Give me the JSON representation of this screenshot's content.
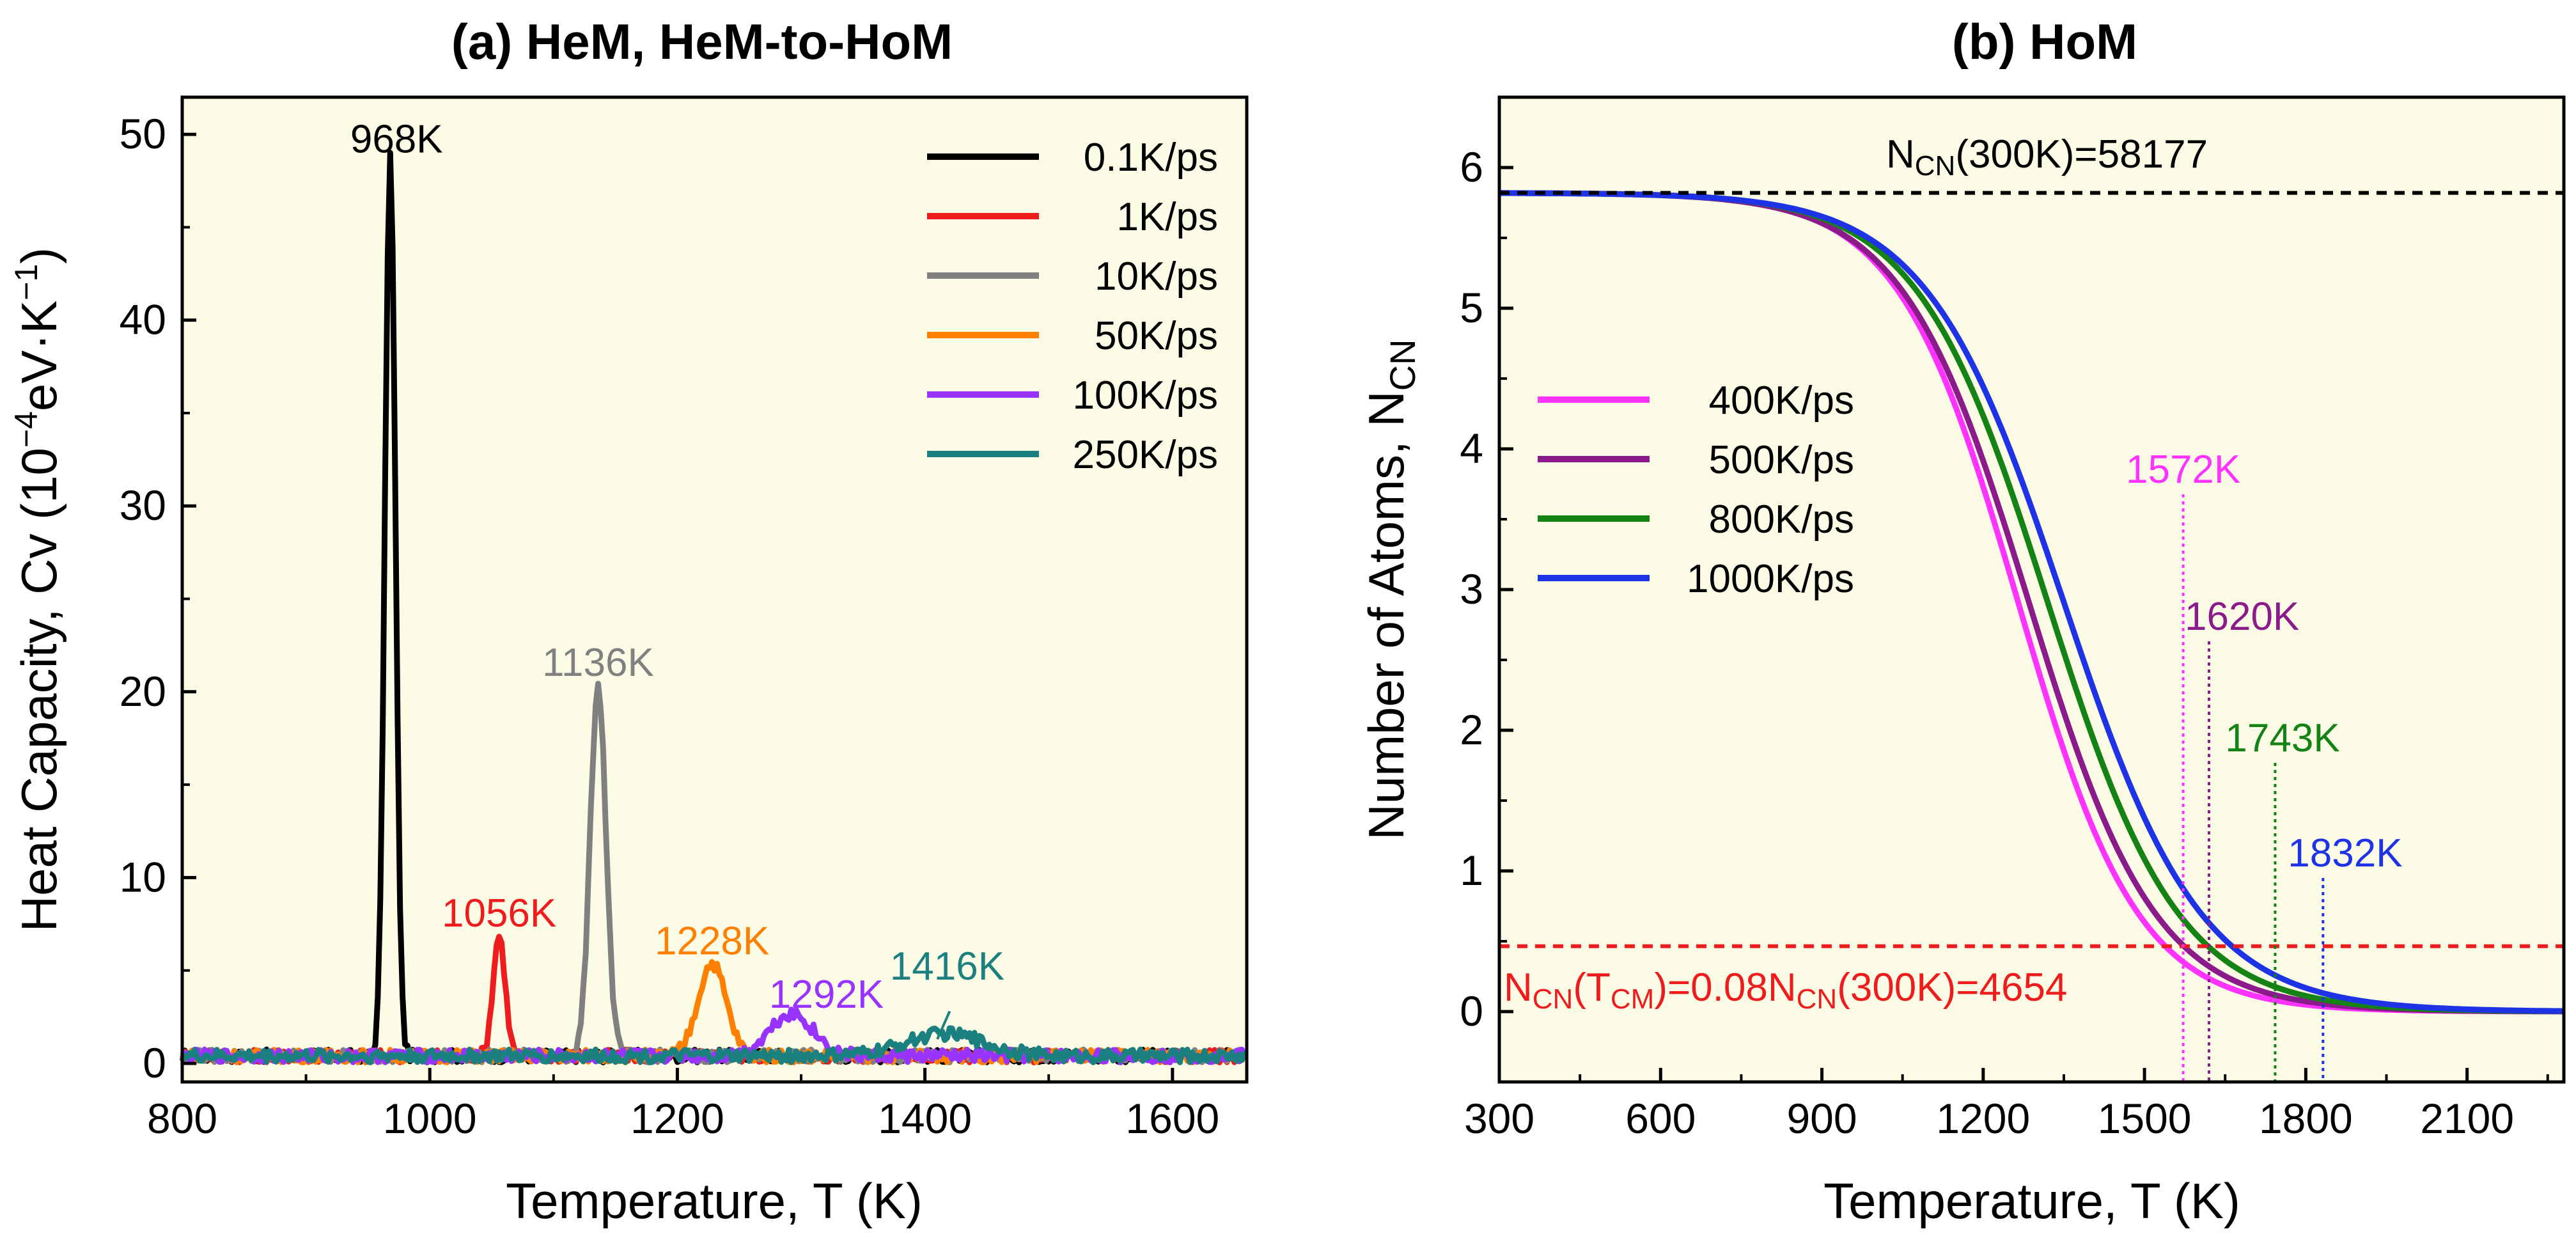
{
  "chart_data": [
    {
      "type": "line",
      "title": "(a) HeM, HeM-to-HoM",
      "xlabel": "Temperature, T (K)",
      "ylabel_main": "Heat Capacity, Cv (10",
      "ylabel_exp": "−4",
      "ylabel_unit": "eV·K",
      "ylabel_unit_exp": "−1",
      "ylabel_close": ")",
      "xlim": [
        800,
        1660
      ],
      "ylim": [
        -1,
        52
      ],
      "xticks": [
        800,
        1000,
        1200,
        1400,
        1600
      ],
      "yticks": [
        0,
        10,
        20,
        30,
        40,
        50
      ],
      "background": "#fcfce6",
      "series": [
        {
          "name": "0.1K/ps",
          "color": "#000000",
          "peak_label": "968K",
          "peak_T": 968,
          "peak_value": 48.5,
          "width": 6,
          "baseline": 0.4
        },
        {
          "name": "1K/ps",
          "color": "#ee1c1c",
          "peak_label": "1056K",
          "peak_T": 1056,
          "peak_value": 6.5,
          "width": 7,
          "baseline": 0.4
        },
        {
          "name": "10K/ps",
          "color": "#808080",
          "peak_label": "1136K",
          "peak_T": 1136,
          "peak_value": 20,
          "width": 9,
          "baseline": 0.4
        },
        {
          "name": "50K/ps",
          "color": "#ff8000",
          "peak_label": "1228K",
          "peak_T": 1228,
          "peak_value": 5,
          "width": 16,
          "baseline": 0.4
        },
        {
          "name": "100K/ps",
          "color": "#9933ff",
          "peak_label": "1292K",
          "peak_T": 1292,
          "peak_value": 2.3,
          "width": 25,
          "baseline": 0.4
        },
        {
          "name": "250K/ps",
          "color": "#1b8080",
          "peak_label": "1416K",
          "peak_T": 1416,
          "peak_value": 1.2,
          "width": 45,
          "baseline": 0.4
        }
      ]
    },
    {
      "type": "line",
      "title": "(b) HoM",
      "xlabel": "Temperature, T (K)",
      "ylabel_main": "Number of Atoms, N",
      "ylabel_sub": "CN",
      "xlim": [
        300,
        2280
      ],
      "ylim": [
        -0.5,
        6.5
      ],
      "xticks": [
        300,
        600,
        900,
        1200,
        1500,
        1800,
        2100
      ],
      "yticks": [
        0,
        1,
        2,
        3,
        4,
        5,
        6
      ],
      "background": "#fcfce6",
      "top_line": {
        "value": 5.82,
        "color": "#000000",
        "label_main": "N",
        "label_sub": "CN",
        "label_rest": "(300K)=58177"
      },
      "bottom_line": {
        "value": 0.465,
        "color": "#ee1c1c",
        "label_p1": "N",
        "label_s1": "CN",
        "label_p2": "(T",
        "label_s2": "CM",
        "label_p3": ")=0.08N",
        "label_s3": "CN",
        "label_p4": "(300K)=4654"
      },
      "series": [
        {
          "name": "400K/ps",
          "color": "#ff33ff",
          "T_mid": 1265,
          "tau": 112,
          "marker_T": 1572,
          "marker_label": "1572K"
        },
        {
          "name": "500K/ps",
          "color": "#8b1a8b",
          "T_mid": 1285,
          "tau": 118,
          "marker_T": 1620,
          "marker_label": "1620K"
        },
        {
          "name": "800K/ps",
          "color": "#148214",
          "T_mid": 1320,
          "tau": 122,
          "marker_T": 1743,
          "marker_label": "1743K"
        },
        {
          "name": "1000K/ps",
          "color": "#1f33e6",
          "T_mid": 1350,
          "tau": 128,
          "marker_T": 1832,
          "marker_label": "1832K"
        }
      ],
      "y_top": 5.82
    }
  ]
}
